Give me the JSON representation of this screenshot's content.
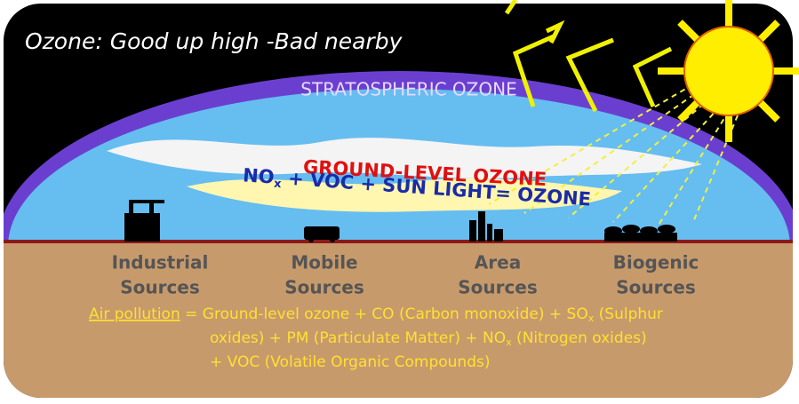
{
  "title": "Ozone: Good up high -Bad nearby",
  "stratosphere_label": "STRATOSPHERIC OZONE",
  "ground_label": "GROUND-LEVEL OZONE",
  "equation": [
    "NO",
    "x",
    " + VOC + SUN LIGHT= OZONE"
  ],
  "sources": [
    [
      "Industrial",
      "Sources"
    ],
    [
      "Mobile",
      "Sources"
    ],
    [
      "Area",
      "Sources"
    ],
    [
      "Biogenic",
      "Sources"
    ]
  ],
  "pollution_note": {
    "link": "Air pollution",
    "lines": [
      [
        " = Ground-level ozone + CO (Carbon monoxide) + SO",
        "x",
        " (Sulphur"
      ],
      [
        "oxides) + PM (Particulate Matter) + NO",
        "x",
        " (Nitrogen oxides)"
      ],
      [
        "+ VOC (Volatile Organic Compounds)"
      ]
    ]
  }
}
